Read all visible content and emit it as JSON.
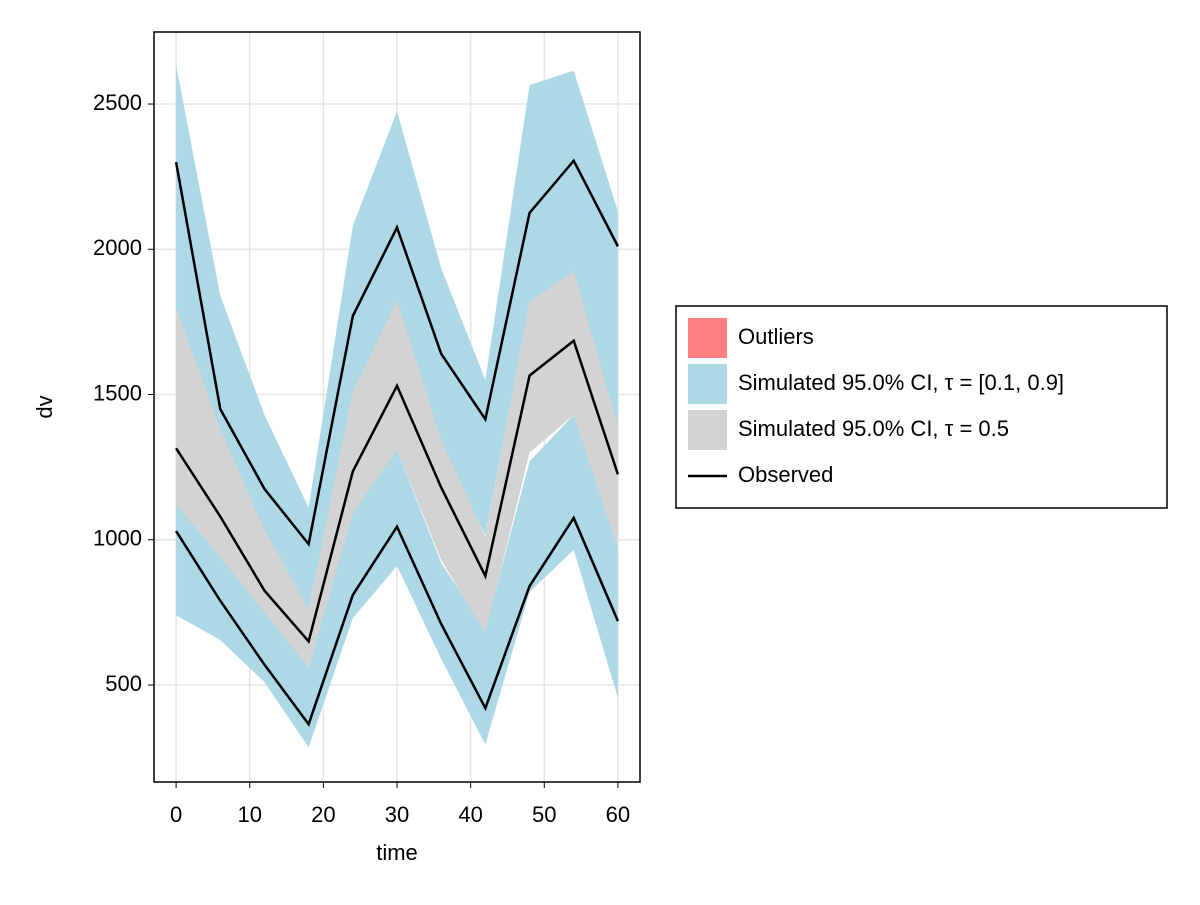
{
  "chart_data": {
    "type": "band-line",
    "xlabel": "time",
    "ylabel": "dv",
    "x": [
      0,
      6,
      12,
      18,
      24,
      30,
      36,
      42,
      48,
      54,
      60
    ],
    "xlim": [
      -3,
      63
    ],
    "xticks": [
      0,
      10,
      20,
      30,
      40,
      50,
      60
    ],
    "ylim": [
      166,
      2748
    ],
    "yticks": [
      500,
      1000,
      1500,
      2000,
      2500
    ],
    "grid": true,
    "legend": "right",
    "outliers": {
      "name": "Outliers",
      "color": "#ff8080"
    },
    "bands": [
      {
        "name": "Simulated 95.0% CI, τ = [0.1, 0.9]",
        "color": "#add8e6",
        "ranges": [
          {
            "lower": [
              1790,
              1360,
              1020,
              760,
              1500,
              1715,
              1320,
              1015,
              1815,
              1920,
              1380
            ],
            "upper": [
              2635,
              1840,
              1430,
              1110,
              2080,
              2475,
              1935,
              1550,
              2565,
              2615,
              2130
            ]
          },
          {
            "lower": [
              740,
              655,
              510,
              285,
              730,
              910,
              590,
              295,
              820,
              965,
              455
            ],
            "upper": [
              1120,
              960,
              760,
              560,
              1100,
              1310,
              920,
              690,
              1270,
              1430,
              990
            ]
          }
        ]
      },
      {
        "name": "Simulated 95.0% CI, τ = 0.5",
        "color": "#d3d3d3",
        "ranges": [
          {
            "lower": [
              1120,
              940,
              750,
              560,
              1090,
              1310,
              930,
              680,
              1300,
              1430,
              970
            ],
            "upper": [
              1800,
              1380,
              1035,
              760,
              1510,
              1825,
              1345,
              1010,
              1820,
              1925,
              1390
            ]
          }
        ]
      }
    ],
    "observed": {
      "name": "Observed",
      "color": "#000000",
      "lines": [
        [
          2300,
          1450,
          1175,
          985,
          1770,
          2075,
          1640,
          1415,
          2125,
          2305,
          2010
        ],
        [
          1315,
          1080,
          825,
          650,
          1235,
          1530,
          1180,
          875,
          1565,
          1685,
          1225
        ],
        [
          1030,
          790,
          570,
          365,
          810,
          1045,
          710,
          420,
          840,
          1075,
          720
        ]
      ]
    }
  }
}
